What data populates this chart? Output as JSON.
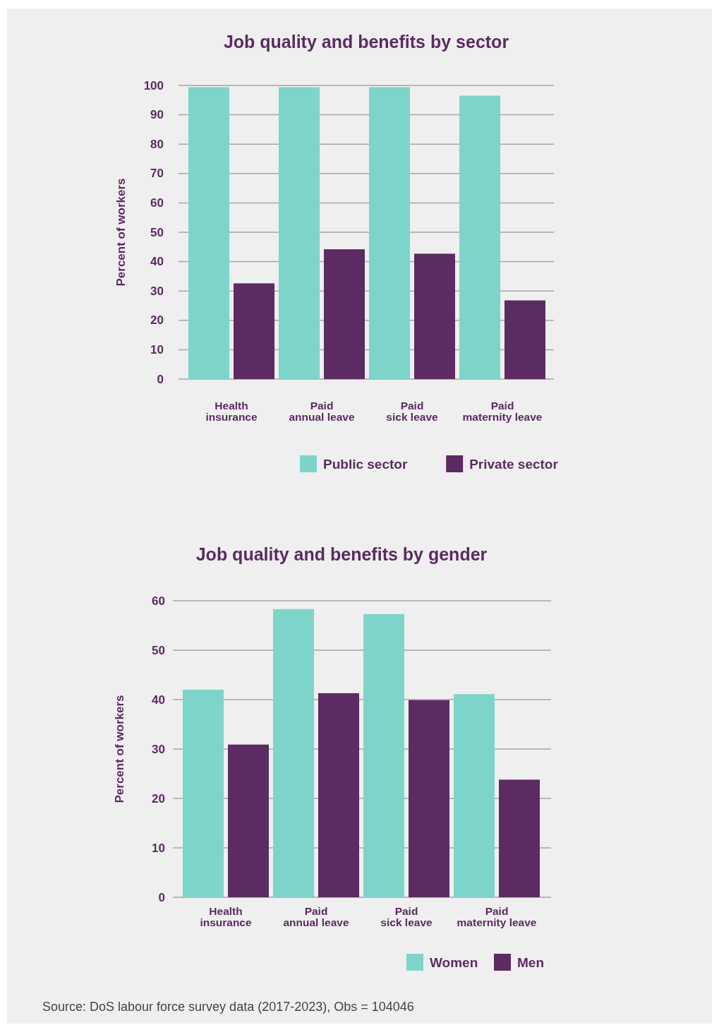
{
  "chart_data": [
    {
      "type": "bar",
      "title": "Job quality and benefits by sector",
      "ylabel": "Percent of workers",
      "categories": [
        "Health insurance",
        "Paid annual leave",
        "Paid sick leave",
        "Paid maternity leave"
      ],
      "series": [
        {
          "name": "Public sector",
          "color": "#7dd5ca",
          "values": [
            99.4,
            99.4,
            99.4,
            96.5
          ]
        },
        {
          "name": "Private sector",
          "color": "#5b2b62",
          "values": [
            32.6,
            44.2,
            42.7,
            26.8
          ]
        }
      ],
      "ylim": [
        0,
        100
      ],
      "yticks": [
        0,
        10,
        20,
        30,
        40,
        50,
        60,
        70,
        80,
        90,
        100
      ],
      "grid": "y",
      "legend": "bottom right"
    },
    {
      "type": "bar",
      "title": "Job quality and benefits by gender",
      "ylabel": "Percent of workers",
      "categories": [
        "Health insurance",
        "Paid annual leave",
        "Paid sick leave",
        "Paid maternity leave"
      ],
      "series": [
        {
          "name": "Women",
          "color": "#7dd5ca",
          "values": [
            42.0,
            58.3,
            57.3,
            41.1
          ]
        },
        {
          "name": "Men",
          "color": "#5b2b62",
          "values": [
            30.9,
            41.3,
            39.9,
            23.8
          ]
        }
      ],
      "ylim": [
        0,
        60
      ],
      "yticks": [
        0,
        10,
        20,
        30,
        40,
        50,
        60
      ],
      "grid": "y",
      "legend": "bottom right",
      "annotations": [
        "Source: DoS labour force survey data (2017-2023), Obs = 104046"
      ]
    }
  ]
}
